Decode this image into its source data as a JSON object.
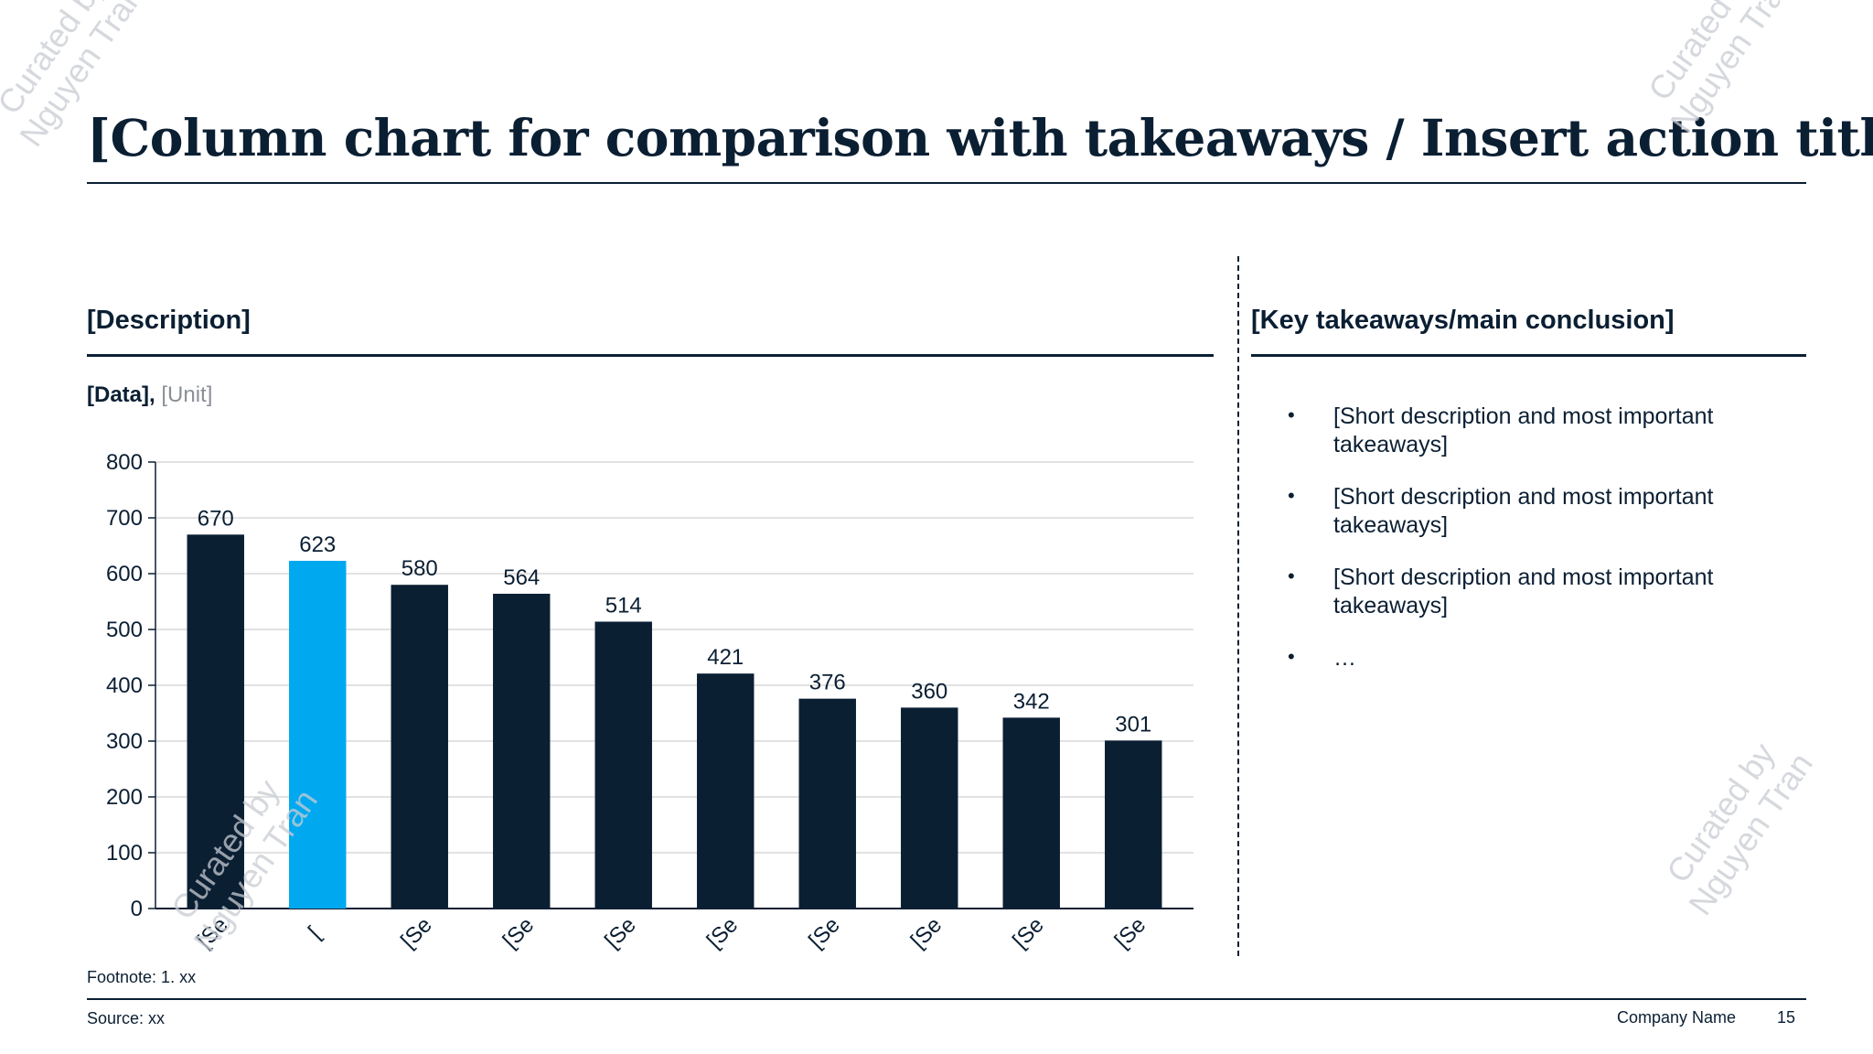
{
  "slide": {
    "title": "[Column chart for comparison with takeaways / Insert action title]",
    "left_heading": "[Description]",
    "right_heading": "[Key takeaways/main conclusion]",
    "data_label": "[Data],",
    "unit_label": "[Unit]",
    "takeaways": [
      "[Short description and most important takeaways]",
      "[Short description and most important takeaways]",
      "[Short description and most important takeaways]",
      "…"
    ],
    "bullet_symbol": "•",
    "footnote": "Footnote: 1. xx",
    "source": "Source: xx",
    "company": "Company Name",
    "page_number": "15",
    "watermark_line1": "Curated by",
    "watermark_line2": "Nguyen Tran"
  },
  "colors": {
    "navy": "#0b1f33",
    "highlight": "#00a8f0",
    "grid": "#d9d9d9",
    "muted": "#8a8f96"
  },
  "chart_data": {
    "type": "bar",
    "title": "",
    "xlabel": "",
    "ylabel": "",
    "ylim": [
      0,
      800
    ],
    "yticks": [
      0,
      100,
      200,
      300,
      400,
      500,
      600,
      700,
      800
    ],
    "grid": true,
    "categories": [
      "[Se",
      "[",
      "[Se",
      "[Se",
      "[Se",
      "[Se",
      "[Se",
      "[Se",
      "[Se",
      "[Se"
    ],
    "values": [
      670,
      623,
      580,
      564,
      514,
      421,
      376,
      360,
      342,
      301
    ],
    "highlight_index": 1,
    "data_labels": true
  }
}
